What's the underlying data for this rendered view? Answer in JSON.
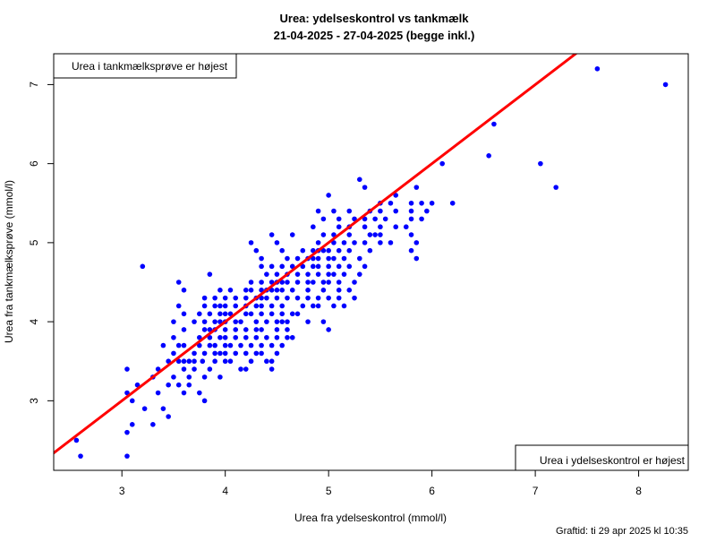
{
  "chart_data": {
    "type": "scatter",
    "title": "Urea: ydelseskontrol vs tankmælk",
    "subtitle": "21-04-2025 - 27-04-2025 (begge inkl.)",
    "xlabel": "Urea fra ydelseskontrol (mmol/l)",
    "ylabel": "Urea fra tankmælksprøve (mmol/l)",
    "xlim": [
      2.34,
      8.48
    ],
    "ylim": [
      2.12,
      7.39
    ],
    "xticks": [
      "3",
      "4",
      "5",
      "6",
      "7",
      "8"
    ],
    "yticks": [
      "3",
      "4",
      "5",
      "6",
      "7"
    ],
    "grid": false,
    "reference_line": {
      "label": "y = x",
      "color": "#ff0000",
      "intercept": 0,
      "slope": 1
    },
    "point_color": "#0000ff",
    "legend_top_left": "Urea i tankmælksprøve er højest",
    "legend_bottom_right": "Urea i ydelseskontrol er højest",
    "points": [
      [
        2.56,
        2.5
      ],
      [
        2.6,
        2.3
      ],
      [
        3.05,
        2.3
      ],
      [
        3.05,
        2.6
      ],
      [
        3.1,
        2.7
      ],
      [
        3.3,
        2.7
      ],
      [
        3.45,
        2.8
      ],
      [
        3.22,
        2.9
      ],
      [
        3.4,
        2.9
      ],
      [
        3.1,
        3.0
      ],
      [
        3.8,
        3.0
      ],
      [
        3.05,
        3.1
      ],
      [
        3.35,
        3.1
      ],
      [
        3.6,
        3.1
      ],
      [
        3.75,
        3.1
      ],
      [
        3.15,
        3.2
      ],
      [
        3.45,
        3.2
      ],
      [
        3.65,
        3.2
      ],
      [
        3.55,
        3.2
      ],
      [
        3.3,
        3.3
      ],
      [
        3.5,
        3.3
      ],
      [
        3.65,
        3.3
      ],
      [
        3.8,
        3.3
      ],
      [
        3.95,
        3.3
      ],
      [
        3.05,
        3.4
      ],
      [
        3.35,
        3.4
      ],
      [
        3.6,
        3.4
      ],
      [
        3.7,
        3.4
      ],
      [
        3.85,
        3.4
      ],
      [
        4.15,
        3.4
      ],
      [
        4.2,
        3.4
      ],
      [
        4.45,
        3.4
      ],
      [
        3.45,
        3.5
      ],
      [
        3.55,
        3.5
      ],
      [
        3.6,
        3.5
      ],
      [
        3.65,
        3.5
      ],
      [
        3.7,
        3.5
      ],
      [
        3.78,
        3.5
      ],
      [
        3.9,
        3.5
      ],
      [
        4.0,
        3.5
      ],
      [
        4.05,
        3.5
      ],
      [
        4.25,
        3.5
      ],
      [
        4.4,
        3.5
      ],
      [
        4.45,
        3.5
      ],
      [
        3.5,
        3.6
      ],
      [
        3.7,
        3.6
      ],
      [
        3.8,
        3.6
      ],
      [
        3.9,
        3.6
      ],
      [
        3.95,
        3.6
      ],
      [
        4.0,
        3.6
      ],
      [
        4.1,
        3.6
      ],
      [
        4.2,
        3.6
      ],
      [
        4.3,
        3.6
      ],
      [
        4.35,
        3.6
      ],
      [
        4.5,
        3.6
      ],
      [
        3.4,
        3.7
      ],
      [
        3.55,
        3.7
      ],
      [
        3.6,
        3.7
      ],
      [
        3.75,
        3.7
      ],
      [
        3.85,
        3.7
      ],
      [
        3.9,
        3.7
      ],
      [
        4.0,
        3.7
      ],
      [
        4.05,
        3.7
      ],
      [
        4.15,
        3.7
      ],
      [
        4.25,
        3.7
      ],
      [
        4.35,
        3.7
      ],
      [
        4.55,
        3.7
      ],
      [
        4.45,
        3.7
      ],
      [
        3.5,
        3.8
      ],
      [
        3.75,
        3.8
      ],
      [
        3.85,
        3.8
      ],
      [
        3.95,
        3.8
      ],
      [
        4.0,
        3.8
      ],
      [
        4.1,
        3.8
      ],
      [
        4.2,
        3.8
      ],
      [
        4.3,
        3.8
      ],
      [
        4.4,
        3.8
      ],
      [
        4.5,
        3.8
      ],
      [
        4.6,
        3.8
      ],
      [
        4.65,
        3.8
      ],
      [
        3.6,
        3.9
      ],
      [
        3.8,
        3.9
      ],
      [
        3.85,
        3.9
      ],
      [
        3.9,
        3.9
      ],
      [
        4.0,
        3.9
      ],
      [
        4.1,
        3.9
      ],
      [
        4.2,
        3.9
      ],
      [
        4.3,
        3.9
      ],
      [
        4.35,
        3.9
      ],
      [
        4.5,
        3.9
      ],
      [
        4.6,
        3.9
      ],
      [
        5.0,
        3.9
      ],
      [
        3.5,
        4.0
      ],
      [
        3.7,
        4.0
      ],
      [
        3.8,
        4.0
      ],
      [
        3.9,
        4.0
      ],
      [
        3.95,
        4.0
      ],
      [
        4.0,
        4.0
      ],
      [
        4.1,
        4.0
      ],
      [
        4.15,
        4.0
      ],
      [
        4.3,
        4.0
      ],
      [
        4.4,
        4.0
      ],
      [
        4.5,
        4.0
      ],
      [
        4.55,
        4.0
      ],
      [
        4.6,
        4.0
      ],
      [
        4.8,
        4.0
      ],
      [
        4.95,
        4.0
      ],
      [
        3.6,
        4.1
      ],
      [
        3.75,
        4.1
      ],
      [
        3.85,
        4.1
      ],
      [
        3.95,
        4.1
      ],
      [
        4.0,
        4.1
      ],
      [
        4.05,
        4.1
      ],
      [
        4.2,
        4.1
      ],
      [
        4.25,
        4.1
      ],
      [
        4.35,
        4.1
      ],
      [
        4.45,
        4.1
      ],
      [
        4.55,
        4.1
      ],
      [
        4.65,
        4.1
      ],
      [
        4.7,
        4.1
      ],
      [
        3.55,
        4.2
      ],
      [
        3.8,
        4.2
      ],
      [
        3.9,
        4.2
      ],
      [
        3.95,
        4.2
      ],
      [
        4.0,
        4.2
      ],
      [
        4.1,
        4.2
      ],
      [
        4.2,
        4.2
      ],
      [
        4.3,
        4.2
      ],
      [
        4.35,
        4.2
      ],
      [
        4.45,
        4.2
      ],
      [
        4.55,
        4.2
      ],
      [
        4.75,
        4.2
      ],
      [
        4.85,
        4.2
      ],
      [
        4.9,
        4.2
      ],
      [
        5.05,
        4.2
      ],
      [
        5.15,
        4.2
      ],
      [
        3.8,
        4.3
      ],
      [
        3.9,
        4.3
      ],
      [
        4.0,
        4.3
      ],
      [
        4.1,
        4.3
      ],
      [
        4.2,
        4.3
      ],
      [
        4.3,
        4.3
      ],
      [
        4.35,
        4.3
      ],
      [
        4.4,
        4.3
      ],
      [
        4.5,
        4.3
      ],
      [
        4.6,
        4.3
      ],
      [
        4.7,
        4.3
      ],
      [
        4.8,
        4.3
      ],
      [
        4.9,
        4.3
      ],
      [
        5.0,
        4.3
      ],
      [
        5.1,
        4.3
      ],
      [
        5.25,
        4.3
      ],
      [
        3.6,
        4.4
      ],
      [
        3.95,
        4.4
      ],
      [
        4.05,
        4.4
      ],
      [
        4.2,
        4.4
      ],
      [
        4.25,
        4.4
      ],
      [
        4.35,
        4.4
      ],
      [
        4.4,
        4.4
      ],
      [
        4.45,
        4.4
      ],
      [
        4.5,
        4.4
      ],
      [
        4.55,
        4.4
      ],
      [
        4.65,
        4.4
      ],
      [
        4.8,
        4.4
      ],
      [
        4.95,
        4.4
      ],
      [
        5.1,
        4.4
      ],
      [
        5.2,
        4.4
      ],
      [
        3.55,
        4.5
      ],
      [
        4.25,
        4.5
      ],
      [
        4.35,
        4.5
      ],
      [
        4.45,
        4.5
      ],
      [
        4.5,
        4.5
      ],
      [
        4.55,
        4.5
      ],
      [
        4.6,
        4.5
      ],
      [
        4.7,
        4.5
      ],
      [
        4.8,
        4.5
      ],
      [
        4.85,
        4.5
      ],
      [
        4.95,
        4.5
      ],
      [
        5.0,
        4.5
      ],
      [
        5.1,
        4.5
      ],
      [
        5.25,
        4.5
      ],
      [
        3.85,
        4.6
      ],
      [
        4.4,
        4.6
      ],
      [
        4.5,
        4.6
      ],
      [
        4.6,
        4.6
      ],
      [
        4.7,
        4.6
      ],
      [
        4.8,
        4.6
      ],
      [
        4.9,
        4.6
      ],
      [
        5.0,
        4.6
      ],
      [
        5.05,
        4.6
      ],
      [
        5.15,
        4.6
      ],
      [
        5.3,
        4.6
      ],
      [
        3.2,
        4.7
      ],
      [
        4.35,
        4.7
      ],
      [
        4.45,
        4.7
      ],
      [
        4.55,
        4.7
      ],
      [
        4.65,
        4.7
      ],
      [
        4.75,
        4.7
      ],
      [
        4.85,
        4.7
      ],
      [
        4.9,
        4.7
      ],
      [
        5.0,
        4.7
      ],
      [
        5.1,
        4.7
      ],
      [
        5.2,
        4.7
      ],
      [
        5.35,
        4.7
      ],
      [
        4.35,
        4.8
      ],
      [
        4.6,
        4.8
      ],
      [
        4.7,
        4.8
      ],
      [
        4.8,
        4.8
      ],
      [
        4.85,
        4.8
      ],
      [
        4.9,
        4.8
      ],
      [
        5.0,
        4.8
      ],
      [
        5.05,
        4.8
      ],
      [
        5.15,
        4.8
      ],
      [
        5.3,
        4.8
      ],
      [
        5.85,
        4.8
      ],
      [
        4.3,
        4.9
      ],
      [
        4.55,
        4.9
      ],
      [
        4.75,
        4.9
      ],
      [
        4.85,
        4.9
      ],
      [
        4.9,
        4.9
      ],
      [
        4.95,
        4.9
      ],
      [
        5.0,
        4.9
      ],
      [
        5.1,
        4.9
      ],
      [
        5.2,
        4.9
      ],
      [
        5.4,
        4.9
      ],
      [
        5.8,
        4.9
      ],
      [
        4.25,
        5.0
      ],
      [
        4.5,
        5.0
      ],
      [
        4.9,
        5.0
      ],
      [
        5.05,
        5.0
      ],
      [
        5.15,
        5.0
      ],
      [
        5.25,
        5.0
      ],
      [
        5.35,
        5.0
      ],
      [
        5.5,
        5.0
      ],
      [
        5.6,
        5.0
      ],
      [
        5.85,
        5.0
      ],
      [
        4.45,
        5.1
      ],
      [
        4.65,
        5.1
      ],
      [
        4.95,
        5.1
      ],
      [
        5.05,
        5.1
      ],
      [
        5.2,
        5.1
      ],
      [
        5.4,
        5.1
      ],
      [
        5.45,
        5.1
      ],
      [
        5.5,
        5.1
      ],
      [
        5.8,
        5.1
      ],
      [
        4.85,
        5.2
      ],
      [
        5.1,
        5.2
      ],
      [
        5.2,
        5.2
      ],
      [
        5.35,
        5.2
      ],
      [
        5.5,
        5.2
      ],
      [
        5.65,
        5.2
      ],
      [
        5.75,
        5.2
      ],
      [
        4.95,
        5.3
      ],
      [
        5.1,
        5.3
      ],
      [
        5.25,
        5.3
      ],
      [
        5.35,
        5.3
      ],
      [
        5.45,
        5.3
      ],
      [
        5.55,
        5.3
      ],
      [
        5.8,
        5.3
      ],
      [
        5.9,
        5.3
      ],
      [
        4.9,
        5.4
      ],
      [
        5.05,
        5.4
      ],
      [
        5.2,
        5.4
      ],
      [
        5.4,
        5.4
      ],
      [
        5.5,
        5.4
      ],
      [
        5.65,
        5.4
      ],
      [
        5.8,
        5.4
      ],
      [
        5.95,
        5.4
      ],
      [
        5.5,
        5.5
      ],
      [
        5.6,
        5.5
      ],
      [
        5.8,
        5.5
      ],
      [
        5.9,
        5.5
      ],
      [
        6.0,
        5.5
      ],
      [
        6.2,
        5.5
      ],
      [
        5.0,
        5.6
      ],
      [
        5.65,
        5.6
      ],
      [
        5.35,
        5.7
      ],
      [
        5.85,
        5.7
      ],
      [
        7.2,
        5.7
      ],
      [
        5.3,
        5.8
      ],
      [
        6.1,
        6.0
      ],
      [
        7.05,
        6.0
      ],
      [
        6.55,
        6.1
      ],
      [
        6.6,
        6.5
      ],
      [
        8.26,
        7.0
      ],
      [
        7.6,
        7.2
      ]
    ]
  },
  "footer": "Graftid: ti 29 apr 2025 kl 10:35"
}
